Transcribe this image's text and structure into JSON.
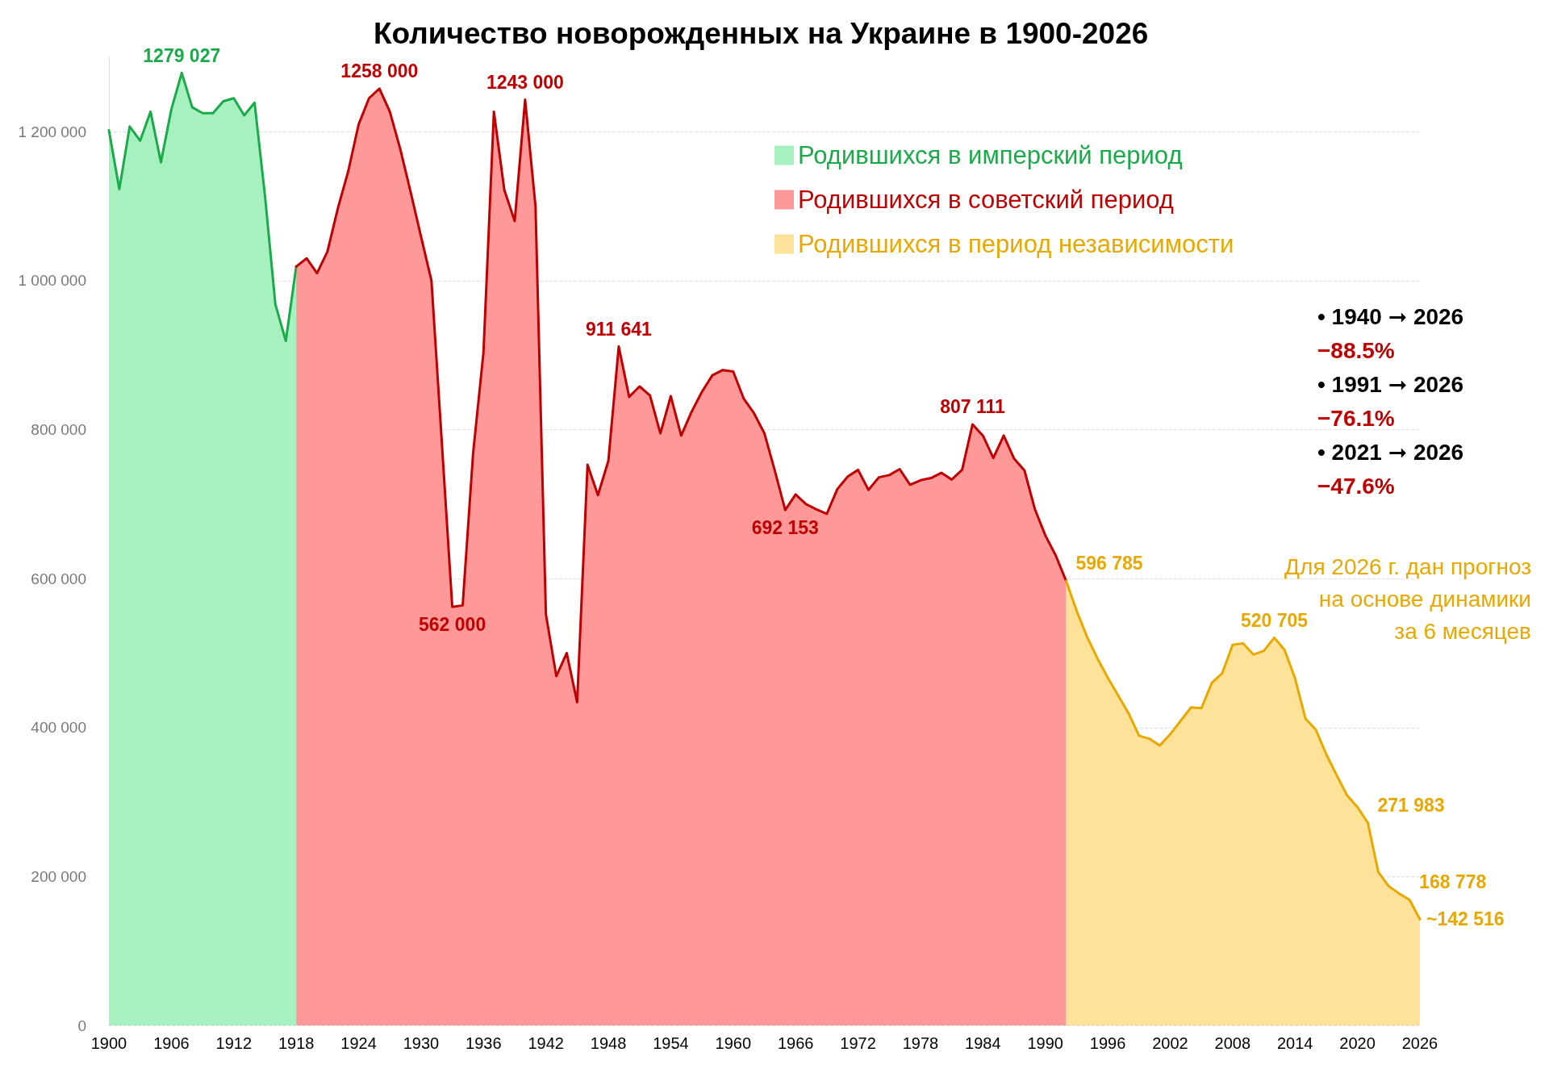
{
  "chart_data": {
    "type": "area",
    "title": "Количество новорожденных на Украине в 1900-2026",
    "xlim": [
      1900,
      2026
    ],
    "xticks": [
      1900,
      1906,
      1912,
      1918,
      1924,
      1930,
      1936,
      1942,
      1948,
      1954,
      1960,
      1966,
      1972,
      1978,
      1984,
      1990,
      1996,
      2002,
      2008,
      2014,
      2020,
      2026
    ],
    "yticks": [
      0,
      {
        "value": 200000,
        "label": "200 000"
      },
      {
        "value": 400000,
        "label": "400 000"
      },
      {
        "value": 600000,
        "label": "600 000"
      },
      {
        "value": 800000,
        "label": "800 000"
      },
      {
        "value": 1000000,
        "label": "1 000 000"
      },
      {
        "value": 1200000,
        "label": "1 200 000"
      }
    ],
    "ylim": [
      0,
      1300000
    ],
    "grid": "y",
    "legend": "top right",
    "series": [
      {
        "name": "Родившихся в имперский период",
        "color": "#1aaa4a",
        "x": [
          1900,
          1901,
          1902,
          1903,
          1904,
          1905,
          1906,
          1907,
          1908,
          1909,
          1910,
          1911,
          1912,
          1913,
          1914,
          1915,
          1916,
          1917,
          1918
        ],
        "values": [
          1202000,
          1123000,
          1207000,
          1188000,
          1227000,
          1159000,
          1230000,
          1279027,
          1233000,
          1225000,
          1225000,
          1241000,
          1245000,
          1222000,
          1239000,
          1114000,
          968000,
          919000,
          1019000
        ],
        "value_labels": [
          null,
          null,
          null,
          null,
          null,
          null,
          null,
          "1279 027",
          null,
          null,
          null,
          null,
          null,
          null,
          null,
          null,
          null,
          null,
          null
        ]
      },
      {
        "name": "Родившихся в советский период",
        "color": "#c00000",
        "x": [
          1918,
          1919,
          1920,
          1921,
          1922,
          1923,
          1924,
          1925,
          1926,
          1927,
          1928,
          1929,
          1930,
          1931,
          1932,
          1933,
          1934,
          1935,
          1936,
          1937,
          1938,
          1939,
          1940,
          1941,
          1942,
          1943,
          1944,
          1945,
          1946,
          1947,
          1948,
          1949,
          1950,
          1951,
          1952,
          1953,
          1954,
          1955,
          1956,
          1957,
          1958,
          1959,
          1960,
          1961,
          1962,
          1963,
          1964,
          1965,
          1966,
          1967,
          1968,
          1969,
          1970,
          1971,
          1972,
          1973,
          1974,
          1975,
          1976,
          1977,
          1978,
          1979,
          1980,
          1981,
          1982,
          1983,
          1984,
          1985,
          1986,
          1987,
          1988,
          1989,
          1990,
          1991,
          1992
        ],
        "values": [
          1019000,
          1030000,
          1010000,
          1039000,
          1097000,
          1147000,
          1210000,
          1245000,
          1258000,
          1227000,
          1177000,
          1119000,
          1059000,
          1000000,
          782000,
          562000,
          564000,
          768000,
          904000,
          1227000,
          1122000,
          1080000,
          1243000,
          1100000,
          552000,
          469000,
          500000,
          434000,
          753000,
          712000,
          758000,
          911641,
          844000,
          858000,
          846000,
          795000,
          845000,
          792000,
          824000,
          851000,
          873000,
          880000,
          878000,
          842000,
          822000,
          795000,
          745000,
          692153,
          713000,
          700000,
          693000,
          687000,
          720000,
          737000,
          746000,
          719000,
          736000,
          739000,
          747000,
          726000,
          732000,
          735000,
          742000,
          733000,
          746000,
          807111,
          792000,
          762000,
          792000,
          761000,
          745000,
          693000,
          658000,
          631000,
          596785
        ],
        "value_labels": [
          null,
          null,
          null,
          null,
          null,
          null,
          null,
          null,
          "1258 000",
          null,
          null,
          null,
          null,
          null,
          null,
          "562 000",
          null,
          null,
          null,
          null,
          null,
          null,
          "1243 000",
          null,
          null,
          null,
          null,
          null,
          null,
          null,
          null,
          "911 641",
          null,
          null,
          null,
          null,
          null,
          null,
          null,
          null,
          null,
          null,
          null,
          null,
          null,
          null,
          null,
          "692 153",
          null,
          null,
          null,
          null,
          null,
          null,
          null,
          null,
          null,
          null,
          null,
          null,
          null,
          null,
          null,
          null,
          null,
          "807 111",
          null,
          null,
          null,
          null,
          null,
          null,
          null,
          null,
          null
        ]
      },
      {
        "name": "Родившихся в период независимости",
        "color": "#e8a800",
        "x": [
          1992,
          1993,
          1994,
          1995,
          1996,
          1997,
          1998,
          1999,
          2000,
          2001,
          2002,
          2003,
          2004,
          2005,
          2006,
          2007,
          2008,
          2009,
          2010,
          2011,
          2012,
          2013,
          2014,
          2015,
          2016,
          2017,
          2018,
          2019,
          2020,
          2021,
          2022,
          2023,
          2024,
          2025,
          2026
        ],
        "values": [
          596785,
          557000,
          522000,
          493000,
          467000,
          443000,
          419000,
          389000,
          385000,
          376000,
          391000,
          409000,
          427000,
          426000,
          460000,
          473000,
          511000,
          513000,
          498000,
          503000,
          520705,
          504000,
          466000,
          412000,
          397000,
          364000,
          336000,
          309000,
          293000,
          271983,
          206000,
          187000,
          177000,
          168778,
          142516
        ],
        "value_labels": [
          "596 785",
          null,
          null,
          null,
          null,
          null,
          null,
          null,
          null,
          null,
          null,
          null,
          null,
          null,
          null,
          null,
          null,
          null,
          null,
          null,
          "520 705",
          null,
          null,
          null,
          null,
          null,
          null,
          null,
          null,
          "271 983",
          null,
          null,
          null,
          "168 778",
          "~142 516"
        ]
      }
    ],
    "annotations": [
      "• 1940 ➞ 2026",
      "−88.5%",
      "• 1991 ➞ 2026",
      "−76.1%",
      "• 2021 ➞ 2026",
      "−47.6%",
      "Для 2026 г. дан прогноз\nна основе динамики\nза 6 месяцев"
    ]
  }
}
